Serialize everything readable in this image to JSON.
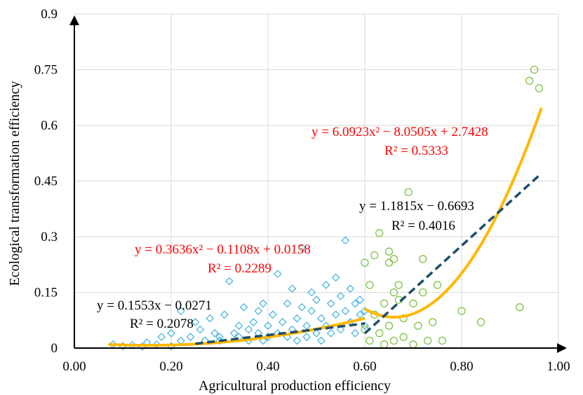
{
  "chart_data": {
    "type": "scatter",
    "xlabel": "Agricultural production efficiency",
    "ylabel": "Ecological transformation efficiency",
    "xlim": [
      0,
      1.0
    ],
    "ylim": [
      0,
      0.9
    ],
    "xticks": [
      "0.00",
      "0.20",
      "0.40",
      "0.60",
      "0.80",
      "1.00"
    ],
    "yticks": [
      "0",
      "0.15",
      "0.3",
      "0.45",
      "0.6",
      "0.75",
      "0.9"
    ],
    "grid": true,
    "colors": {
      "low_points": "#3FB0E0",
      "high_points": "#7DC242",
      "poly_fit": "#FFB800",
      "linear_fit": "#1F4E6B",
      "poly_label": "#FF0000",
      "linear_label": "#000000"
    },
    "series": [
      {
        "marker": "diamond",
        "x_range": [
          0.08,
          0.6
        ],
        "points": [
          [
            0.08,
            0.01
          ],
          [
            0.1,
            0.005
          ],
          [
            0.12,
            0.008
          ],
          [
            0.14,
            0.004
          ],
          [
            0.15,
            0.015
          ],
          [
            0.17,
            0.01
          ],
          [
            0.18,
            0.03
          ],
          [
            0.2,
            0.005
          ],
          [
            0.2,
            0.04
          ],
          [
            0.22,
            0.02
          ],
          [
            0.22,
            0.1
          ],
          [
            0.24,
            0.03
          ],
          [
            0.25,
            0.07
          ],
          [
            0.26,
            0.05
          ],
          [
            0.27,
            0.02
          ],
          [
            0.28,
            0.08
          ],
          [
            0.29,
            0.04
          ],
          [
            0.3,
            0.03
          ],
          [
            0.3,
            0.02
          ],
          [
            0.31,
            0.09
          ],
          [
            0.32,
            0.18
          ],
          [
            0.33,
            0.04
          ],
          [
            0.34,
            0.06
          ],
          [
            0.34,
            0.03
          ],
          [
            0.35,
            0.11
          ],
          [
            0.36,
            0.05
          ],
          [
            0.36,
            0.02
          ],
          [
            0.37,
            0.07
          ],
          [
            0.38,
            0.1
          ],
          [
            0.38,
            0.04
          ],
          [
            0.39,
            0.12
          ],
          [
            0.39,
            0.02
          ],
          [
            0.4,
            0.06
          ],
          [
            0.4,
            0.03
          ],
          [
            0.41,
            0.09
          ],
          [
            0.42,
            0.04
          ],
          [
            0.42,
            0.2
          ],
          [
            0.43,
            0.07
          ],
          [
            0.44,
            0.12
          ],
          [
            0.44,
            0.03
          ],
          [
            0.45,
            0.05
          ],
          [
            0.45,
            0.16
          ],
          [
            0.46,
            0.08
          ],
          [
            0.46,
            0.02
          ],
          [
            0.47,
            0.11
          ],
          [
            0.47,
            0.27
          ],
          [
            0.48,
            0.06
          ],
          [
            0.48,
            0.03
          ],
          [
            0.49,
            0.1
          ],
          [
            0.49,
            0.15
          ],
          [
            0.5,
            0.04
          ],
          [
            0.5,
            0.13
          ],
          [
            0.51,
            0.08
          ],
          [
            0.51,
            0.02
          ],
          [
            0.52,
            0.17
          ],
          [
            0.52,
            0.06
          ],
          [
            0.53,
            0.12
          ],
          [
            0.53,
            0.04
          ],
          [
            0.54,
            0.09
          ],
          [
            0.54,
            0.19
          ],
          [
            0.55,
            0.14
          ],
          [
            0.55,
            0.05
          ],
          [
            0.56,
            0.29
          ],
          [
            0.56,
            0.1
          ],
          [
            0.57,
            0.07
          ],
          [
            0.57,
            0.16
          ],
          [
            0.58,
            0.12
          ],
          [
            0.58,
            0.04
          ],
          [
            0.59,
            0.09
          ],
          [
            0.59,
            0.13
          ],
          [
            0.6,
            0.06
          ],
          [
            0.6,
            0.1
          ]
        ]
      },
      {
        "marker": "circle",
        "x_range": [
          0.6,
          0.97
        ],
        "points": [
          [
            0.6,
            0.23
          ],
          [
            0.6,
            0.05
          ],
          [
            0.61,
            0.17
          ],
          [
            0.61,
            0.02
          ],
          [
            0.62,
            0.25
          ],
          [
            0.62,
            0.09
          ],
          [
            0.63,
            0.31
          ],
          [
            0.63,
            0.04
          ],
          [
            0.64,
            0.12
          ],
          [
            0.64,
            0.01
          ],
          [
            0.65,
            0.26
          ],
          [
            0.65,
            0.23
          ],
          [
            0.65,
            0.06
          ],
          [
            0.66,
            0.24
          ],
          [
            0.66,
            0.15
          ],
          [
            0.66,
            0.02
          ],
          [
            0.67,
            0.17
          ],
          [
            0.67,
            0.13
          ],
          [
            0.68,
            0.08
          ],
          [
            0.68,
            0.03
          ],
          [
            0.69,
            0.42
          ],
          [
            0.7,
            0.12
          ],
          [
            0.7,
            0.01
          ],
          [
            0.71,
            0.06
          ],
          [
            0.72,
            0.24
          ],
          [
            0.72,
            0.15
          ],
          [
            0.73,
            0.02
          ],
          [
            0.74,
            0.07
          ],
          [
            0.75,
            0.17
          ],
          [
            0.76,
            0.02
          ],
          [
            0.8,
            0.1
          ],
          [
            0.84,
            0.07
          ],
          [
            0.92,
            0.11
          ],
          [
            0.94,
            0.72
          ],
          [
            0.95,
            0.75
          ],
          [
            0.96,
            0.7
          ]
        ]
      }
    ],
    "fits": [
      {
        "type": "poly",
        "range": [
          0.07,
          0.6
        ],
        "coef": [
          0.3636,
          -0.1108,
          0.0158
        ],
        "label": "y = 0.3636x² − 0.1108x + 0.0158",
        "r2": "R² = 0.2289"
      },
      {
        "type": "linear",
        "range": [
          0.25,
          0.6
        ],
        "coef": [
          0.1553,
          -0.0271
        ],
        "label": "y = 0.1553x − 0.0271",
        "r2": "R² = 0.2078"
      },
      {
        "type": "poly",
        "range": [
          0.6,
          0.965
        ],
        "coef": [
          6.0923,
          -8.0505,
          2.7428
        ],
        "label": "y = 6.0923x² − 8.0505x + 2.7428",
        "r2": "R² = 0.5333"
      },
      {
        "type": "linear",
        "range": [
          0.6,
          0.965
        ],
        "coef": [
          1.1815,
          -0.6693
        ],
        "label": "y = 1.1815x − 0.6693",
        "r2": "R² = 0.4016"
      }
    ]
  }
}
